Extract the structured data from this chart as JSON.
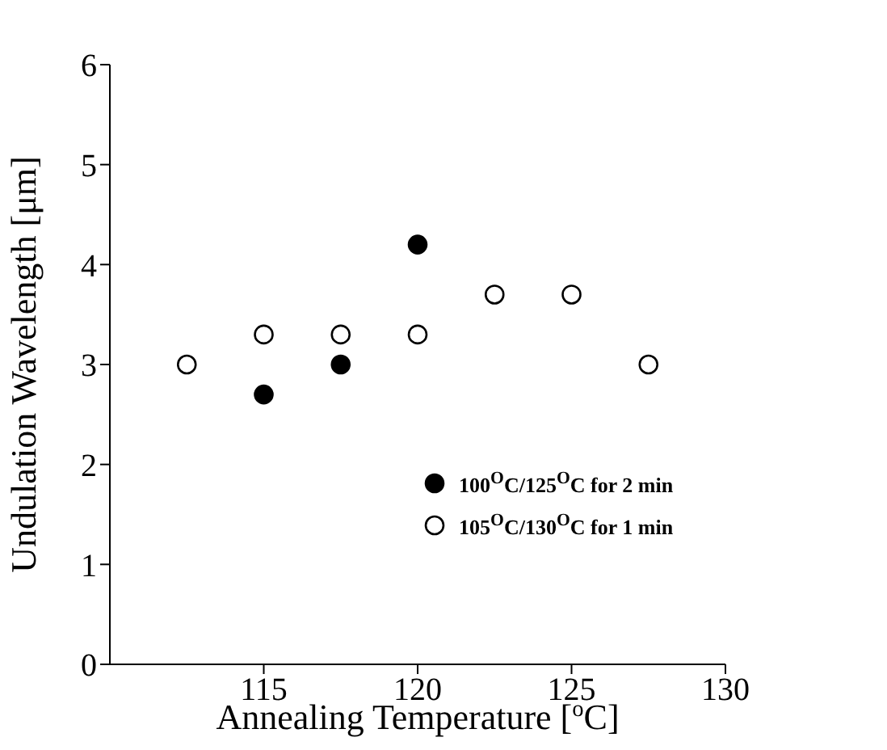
{
  "chart_data": {
    "type": "scatter",
    "xlabel": "Annealing Temperature [$^{o}$C]",
    "ylabel": "Undulation Wavelength [μm]",
    "xlim": [
      110,
      130
    ],
    "xticks": [
      115,
      120,
      125,
      130
    ],
    "ylim": [
      0,
      6
    ],
    "yticks": [
      0,
      1,
      2,
      3,
      4,
      5,
      6
    ],
    "legend": "bottom right",
    "marker": "circle",
    "series": [
      {
        "name": "100$^{O}$C/125$^{O}$C for 2 min",
        "color": "#000000",
        "x": [
          115,
          117.5,
          120
        ],
        "values": [
          2.7,
          3.0,
          4.2
        ]
      },
      {
        "name": "105$^{O}$C/130$^{O}$C for 1 min",
        "color": "#ffffff",
        "x": [
          112.5,
          115,
          117.5,
          120,
          122.5,
          125,
          127.5
        ],
        "values": [
          3.0,
          3.3,
          3.3,
          3.3,
          3.7,
          3.7,
          3.0
        ]
      }
    ]
  }
}
